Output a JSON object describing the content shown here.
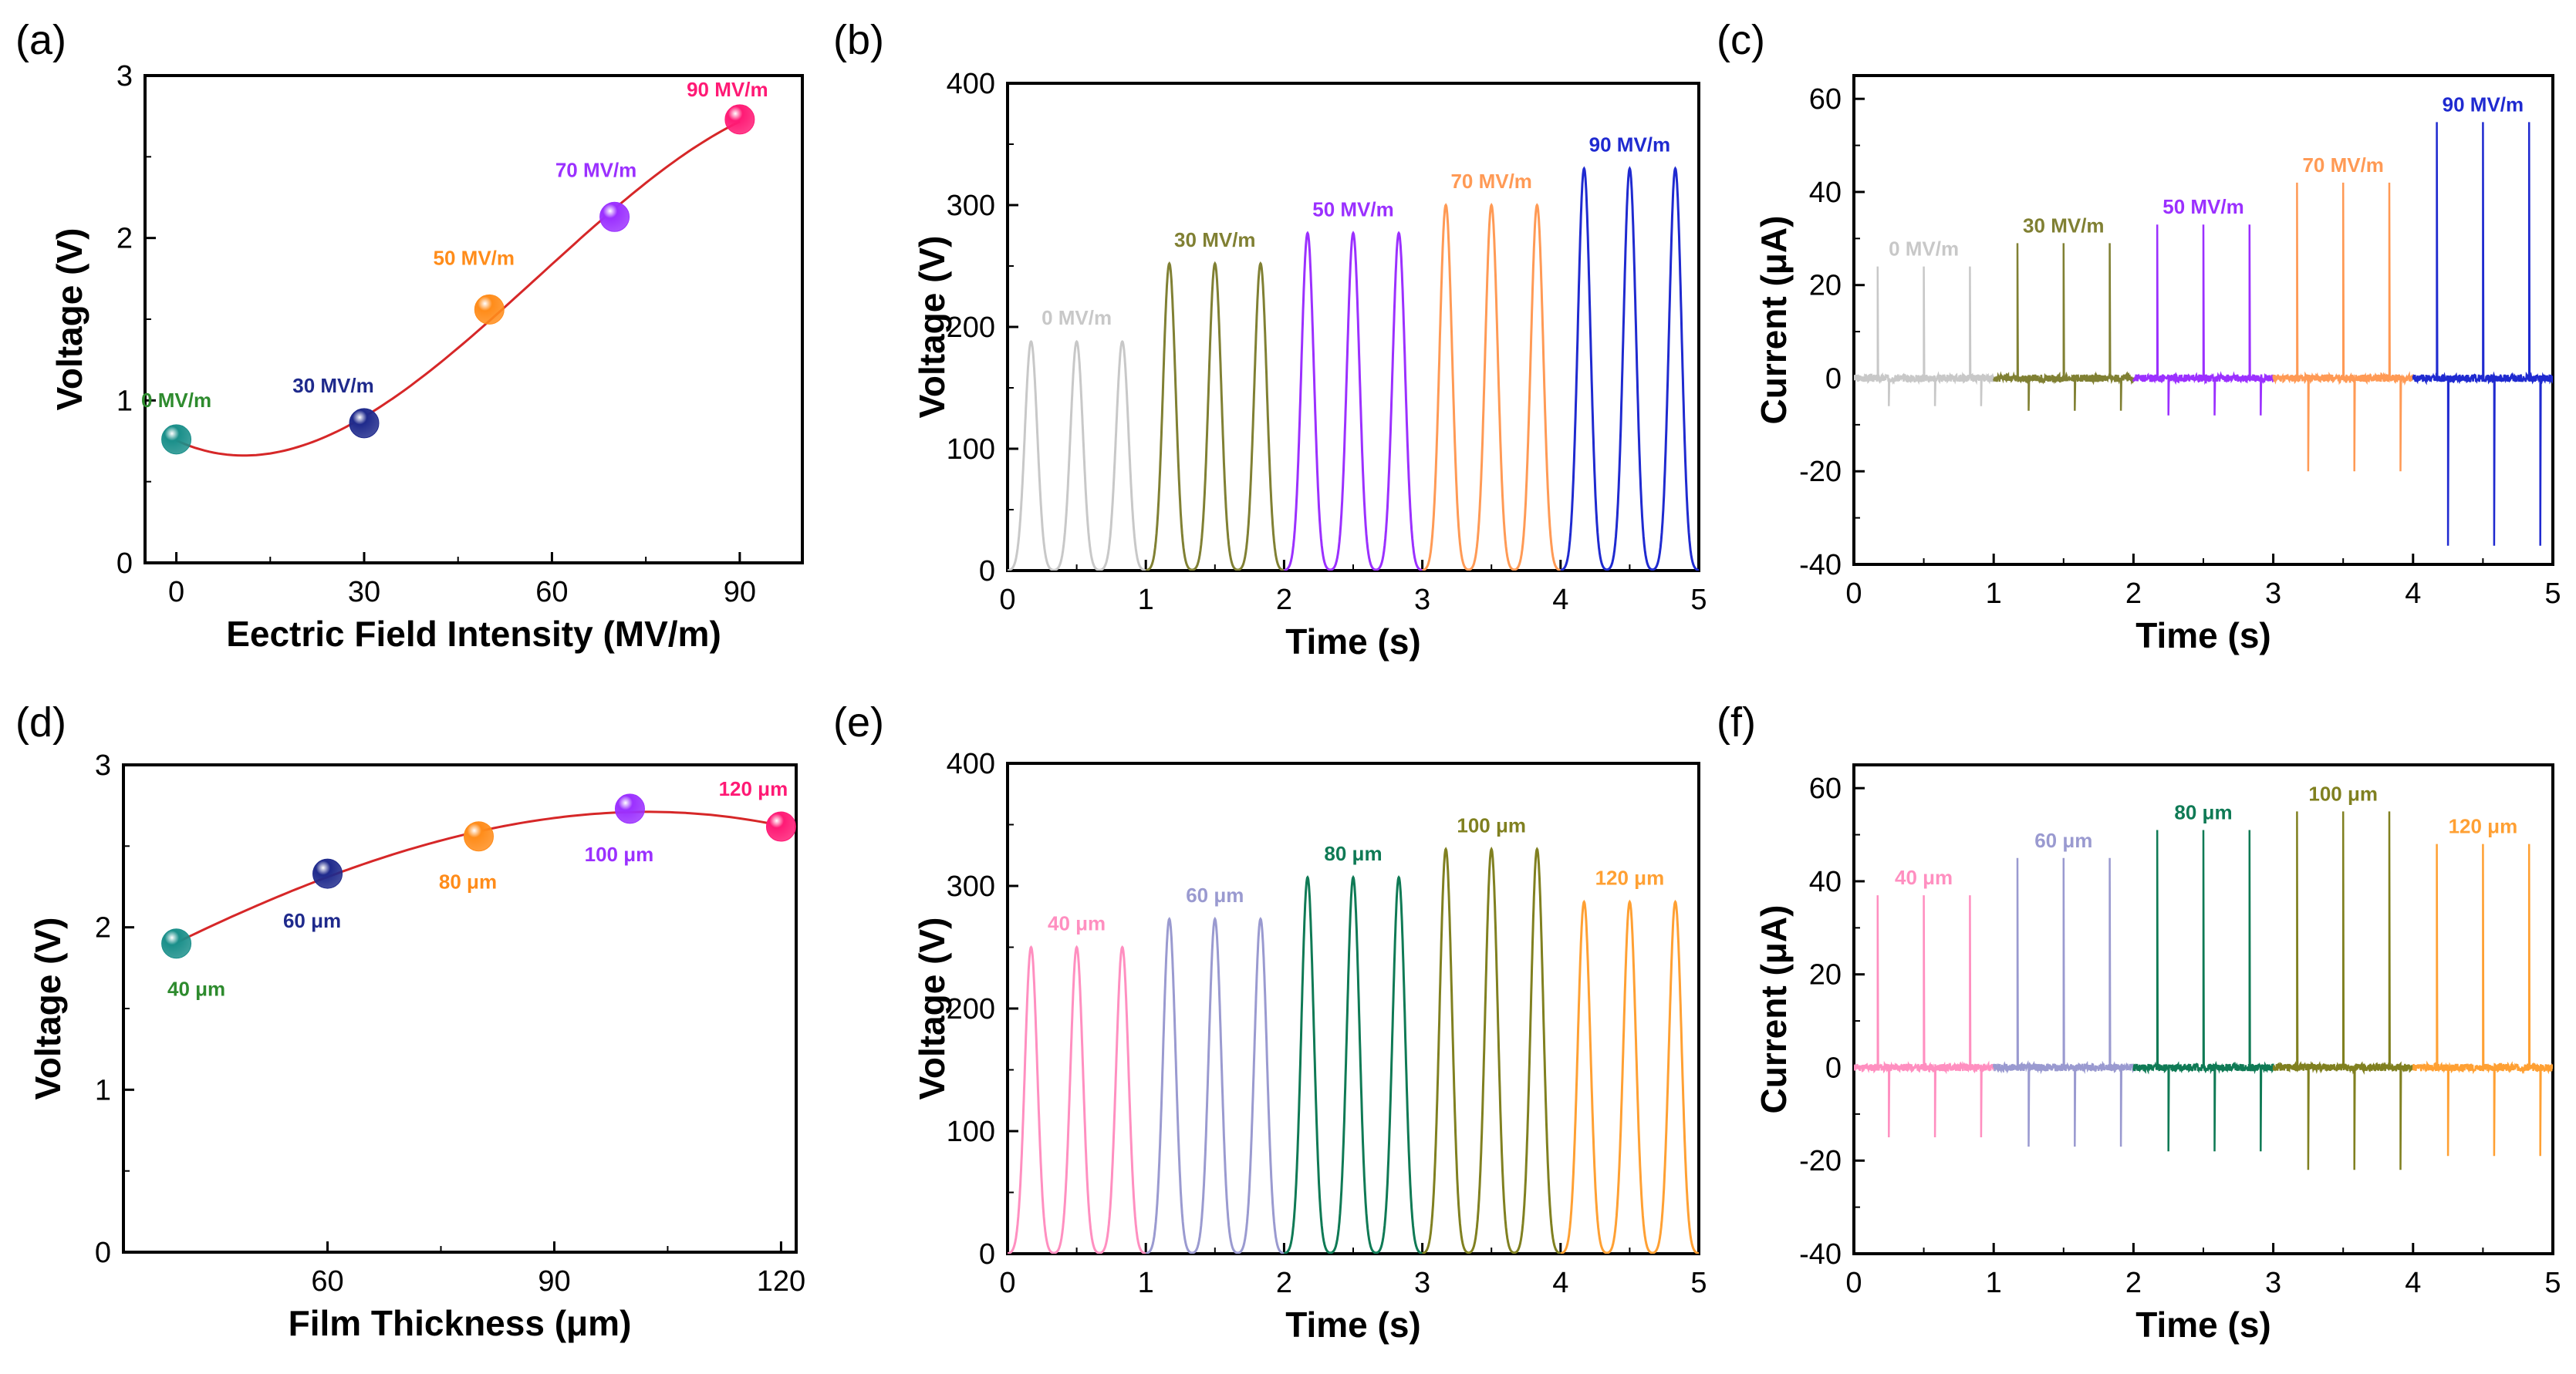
{
  "figure": {
    "panels": [
      "(a)",
      "(b)",
      "(c)",
      "(d)",
      "(e)",
      "(f)"
    ]
  },
  "chart_data": [
    {
      "id": "a",
      "type": "scatter",
      "panel_label": "(a)",
      "xlabel": "Eectric Field Intensity (MV/m)",
      "ylabel": "Voltage (V)",
      "xlim": [
        -5,
        100
      ],
      "ylim": [
        0,
        3
      ],
      "xticks": [
        0,
        30,
        60,
        90
      ],
      "yticks": [
        0,
        1,
        2,
        3
      ],
      "points": [
        {
          "x": 0,
          "y": 0.76,
          "label": "0 MV/m",
          "color": "#1a8f8a",
          "label_color": "#2e8b2e"
        },
        {
          "x": 30,
          "y": 0.86,
          "label": "30 MV/m",
          "color": "#1f2a8c",
          "label_color": "#1f2a8c"
        },
        {
          "x": 50,
          "y": 1.56,
          "label": "50 MV/m",
          "color": "#ff8c1a",
          "label_color": "#ff8c1a"
        },
        {
          "x": 70,
          "y": 2.13,
          "label": "70 MV/m",
          "color": "#9b30ff",
          "label_color": "#9b30ff"
        },
        {
          "x": 90,
          "y": 2.73,
          "label": "90 MV/m",
          "color": "#ff1a75",
          "label_color": "#ff1a75"
        }
      ],
      "fit_color": "#d62728"
    },
    {
      "id": "b",
      "type": "line",
      "panel_label": "(b)",
      "xlabel": "Time (s)",
      "ylabel": "Voltage (V)",
      "xlim": [
        0,
        5
      ],
      "ylim": [
        0,
        400
      ],
      "xticks": [
        0,
        1,
        2,
        3,
        4,
        5
      ],
      "yticks": [
        0,
        100,
        200,
        300,
        400
      ],
      "series": [
        {
          "name": "0 MV/m",
          "color": "#c8c8c8",
          "peak": 188
        },
        {
          "name": "30 MV/m",
          "color": "#808033",
          "peak": 252
        },
        {
          "name": "50 MV/m",
          "color": "#9b30ff",
          "peak": 277
        },
        {
          "name": "70 MV/m",
          "color": "#ff9a55",
          "peak": 300
        },
        {
          "name": "90 MV/m",
          "color": "#1f2ad0",
          "peak": 330
        }
      ]
    },
    {
      "id": "c",
      "type": "line",
      "panel_label": "(c)",
      "xlabel": "Time (s)",
      "ylabel": "Current (μA)",
      "xlim": [
        0,
        5
      ],
      "ylim": [
        -40,
        65
      ],
      "xticks": [
        0,
        1,
        2,
        3,
        4,
        5
      ],
      "yticks": [
        -40,
        -20,
        0,
        20,
        40,
        60
      ],
      "series": [
        {
          "name": "0 MV/m",
          "color": "#c8c8c8",
          "pos": 24,
          "neg": -6
        },
        {
          "name": "30 MV/m",
          "color": "#808033",
          "pos": 29,
          "neg": -7
        },
        {
          "name": "50 MV/m",
          "color": "#9b30ff",
          "pos": 33,
          "neg": -8
        },
        {
          "name": "70 MV/m",
          "color": "#ff9a55",
          "pos": 42,
          "neg": -20
        },
        {
          "name": "90 MV/m",
          "color": "#1f2ad0",
          "pos": 55,
          "neg": -36
        }
      ]
    },
    {
      "id": "d",
      "type": "scatter",
      "panel_label": "(d)",
      "xlabel": "Film Thickness (μm)",
      "ylabel": "Voltage (V)",
      "xlim": [
        33,
        122
      ],
      "ylim": [
        0,
        3
      ],
      "xticks": [
        60,
        90,
        120
      ],
      "yticks": [
        0,
        1,
        2,
        3
      ],
      "points": [
        {
          "x": 40,
          "y": 1.9,
          "label": "40 μm",
          "color": "#1a8f8a",
          "label_color": "#2e8b2e"
        },
        {
          "x": 60,
          "y": 2.33,
          "label": "60 μm",
          "color": "#1f2a8c",
          "label_color": "#1f2a8c"
        },
        {
          "x": 80,
          "y": 2.56,
          "label": "80 μm",
          "color": "#ff8c1a",
          "label_color": "#ff8c1a"
        },
        {
          "x": 100,
          "y": 2.73,
          "label": "100 μm",
          "color": "#9b30ff",
          "label_color": "#9b30ff"
        },
        {
          "x": 120,
          "y": 2.62,
          "label": "120 μm",
          "color": "#ff1a75",
          "label_color": "#ff1a75"
        }
      ],
      "fit_color": "#d62728"
    },
    {
      "id": "e",
      "type": "line",
      "panel_label": "(e)",
      "xlabel": "Time (s)",
      "ylabel": "Voltage (V)",
      "xlim": [
        0,
        5
      ],
      "ylim": [
        0,
        400
      ],
      "xticks": [
        0,
        1,
        2,
        3,
        4,
        5
      ],
      "yticks": [
        0,
        100,
        200,
        300,
        400
      ],
      "series": [
        {
          "name": "40 μm",
          "color": "#ff8fc0",
          "peak": 250
        },
        {
          "name": "60 μm",
          "color": "#9a9ad0",
          "peak": 273
        },
        {
          "name": "80 μm",
          "color": "#0f7a55",
          "peak": 307
        },
        {
          "name": "100 μm",
          "color": "#808020",
          "peak": 330
        },
        {
          "name": "120 μm",
          "color": "#ffa033",
          "peak": 287
        }
      ]
    },
    {
      "id": "f",
      "type": "line",
      "panel_label": "(f)",
      "xlabel": "Time (s)",
      "ylabel": "Current (μA)",
      "xlim": [
        0,
        5
      ],
      "ylim": [
        -40,
        65
      ],
      "xticks": [
        0,
        1,
        2,
        3,
        4,
        5
      ],
      "yticks": [
        -40,
        -20,
        0,
        20,
        40,
        60
      ],
      "series": [
        {
          "name": "40 μm",
          "color": "#ff8fc0",
          "pos": 37,
          "neg": -15
        },
        {
          "name": "60 μm",
          "color": "#9a9ad0",
          "pos": 45,
          "neg": -17
        },
        {
          "name": "80 μm",
          "color": "#0f7a55",
          "pos": 51,
          "neg": -18
        },
        {
          "name": "100 μm",
          "color": "#808020",
          "pos": 55,
          "neg": -22
        },
        {
          "name": "120 μm",
          "color": "#ffa033",
          "pos": 48,
          "neg": -19
        }
      ]
    }
  ]
}
